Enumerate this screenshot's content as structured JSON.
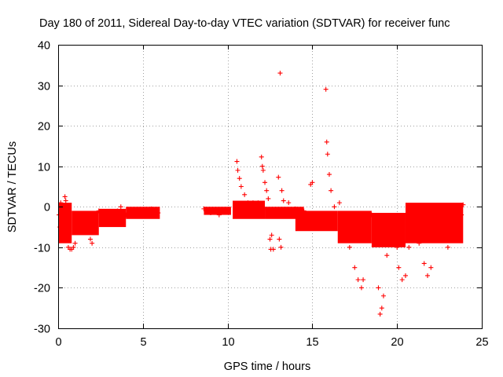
{
  "chart_data": {
    "type": "scatter",
    "title": "Day 180 of 2011, Sidereal Day-to-day VTEC variation (SDTVAR) for receiver func",
    "xlabel": "GPS time / hours",
    "ylabel": "SDTVAR / TECUs",
    "xlim": [
      0,
      25
    ],
    "ylim": [
      -30,
      40
    ],
    "xticks": [
      "0",
      "5",
      "10",
      "15",
      "20",
      "25"
    ],
    "yticks": [
      "-30",
      "-20",
      "-10",
      "0",
      "10",
      "20",
      "30",
      "40"
    ],
    "grid": true,
    "marker": "+",
    "color": "#ff0000",
    "series": [
      {
        "name": "SDTVAR",
        "points": [
          [
            0.05,
            -2
          ],
          [
            0.1,
            -5
          ],
          [
            0.15,
            1
          ],
          [
            0.2,
            -4
          ],
          [
            0.3,
            -3
          ],
          [
            0.4,
            2.5
          ],
          [
            0.45,
            1.5
          ],
          [
            0.5,
            -8
          ],
          [
            0.6,
            -10
          ],
          [
            0.7,
            -10.5
          ],
          [
            0.8,
            -10.5
          ],
          [
            0.9,
            -10
          ],
          [
            1.0,
            -9
          ],
          [
            1.2,
            -5
          ],
          [
            1.4,
            -4
          ],
          [
            1.6,
            -3
          ],
          [
            1.8,
            -6
          ],
          [
            1.9,
            -8
          ],
          [
            2.0,
            -9
          ],
          [
            2.1,
            -6
          ],
          [
            2.2,
            -3
          ],
          [
            2.4,
            -1
          ],
          [
            2.6,
            -4
          ],
          [
            3.0,
            -3
          ],
          [
            3.5,
            -1
          ],
          [
            3.7,
            0
          ],
          [
            4.0,
            -2
          ],
          [
            4.5,
            -1
          ],
          [
            5.0,
            -1.5
          ],
          [
            5.5,
            -0.5
          ],
          [
            5.9,
            -1.5
          ],
          [
            8.6,
            -0.5
          ],
          [
            9.0,
            -1.5
          ],
          [
            9.5,
            -2
          ],
          [
            10.0,
            -1
          ],
          [
            10.5,
            -1.5
          ],
          [
            10.55,
            11.2
          ],
          [
            10.6,
            9
          ],
          [
            10.7,
            7
          ],
          [
            10.8,
            5
          ],
          [
            11.0,
            3
          ],
          [
            11.2,
            1
          ],
          [
            11.5,
            1
          ],
          [
            11.8,
            1
          ],
          [
            12.0,
            12.3
          ],
          [
            12.05,
            10
          ],
          [
            12.1,
            9
          ],
          [
            12.2,
            6
          ],
          [
            12.3,
            4
          ],
          [
            12.4,
            2
          ],
          [
            12.5,
            -8
          ],
          [
            12.55,
            -10.5
          ],
          [
            12.6,
            -7
          ],
          [
            12.7,
            -10.5
          ],
          [
            13.0,
            7.3
          ],
          [
            13.05,
            -8
          ],
          [
            13.1,
            33
          ],
          [
            13.15,
            -10
          ],
          [
            13.2,
            4
          ],
          [
            13.3,
            1.5
          ],
          [
            13.6,
            1
          ],
          [
            14.0,
            -0.5
          ],
          [
            14.5,
            -1
          ],
          [
            14.9,
            5.5
          ],
          [
            15.0,
            6
          ],
          [
            15.1,
            -3
          ],
          [
            15.5,
            -4
          ],
          [
            15.8,
            29
          ],
          [
            15.85,
            16
          ],
          [
            15.9,
            13
          ],
          [
            16.0,
            8
          ],
          [
            16.1,
            4
          ],
          [
            16.3,
            0
          ],
          [
            16.6,
            1
          ],
          [
            16.8,
            -4
          ],
          [
            17.0,
            -8
          ],
          [
            17.2,
            -10
          ],
          [
            17.5,
            -15
          ],
          [
            17.7,
            -18
          ],
          [
            17.9,
            -20
          ],
          [
            18.0,
            -18
          ],
          [
            18.3,
            -5
          ],
          [
            18.5,
            -2
          ],
          [
            18.9,
            -20
          ],
          [
            19.0,
            -26.5
          ],
          [
            19.1,
            -25
          ],
          [
            19.2,
            -22
          ],
          [
            19.4,
            -12
          ],
          [
            19.6,
            -8
          ],
          [
            19.8,
            -9
          ],
          [
            20.0,
            -10
          ],
          [
            20.1,
            -15
          ],
          [
            20.3,
            -18
          ],
          [
            20.5,
            -17
          ],
          [
            20.7,
            -10
          ],
          [
            21.0,
            -6
          ],
          [
            21.3,
            -9
          ],
          [
            21.6,
            -14
          ],
          [
            21.8,
            -17
          ],
          [
            22.0,
            -15
          ],
          [
            22.2,
            -7
          ],
          [
            22.5,
            -2
          ],
          [
            22.8,
            -8
          ],
          [
            23.0,
            -10
          ],
          [
            23.3,
            -6
          ],
          [
            23.5,
            -3
          ],
          [
            23.8,
            -2
          ],
          [
            23.9,
            0.5
          ]
        ],
        "bands": [
          [
            0.0,
            0.8,
            -9,
            1
          ],
          [
            0.8,
            2.4,
            -7,
            -1
          ],
          [
            2.4,
            4.0,
            -5,
            -0.5
          ],
          [
            4.0,
            6.0,
            -3,
            0
          ],
          [
            8.6,
            10.2,
            -2,
            0
          ],
          [
            10.3,
            12.2,
            -3,
            1.5
          ],
          [
            12.2,
            14.5,
            -3,
            0
          ],
          [
            14.0,
            16.5,
            -6,
            -1
          ],
          [
            16.5,
            18.5,
            -9,
            -1
          ],
          [
            18.5,
            20.5,
            -10,
            -1.5
          ],
          [
            20.5,
            23.9,
            -9,
            1
          ]
        ]
      }
    ]
  }
}
